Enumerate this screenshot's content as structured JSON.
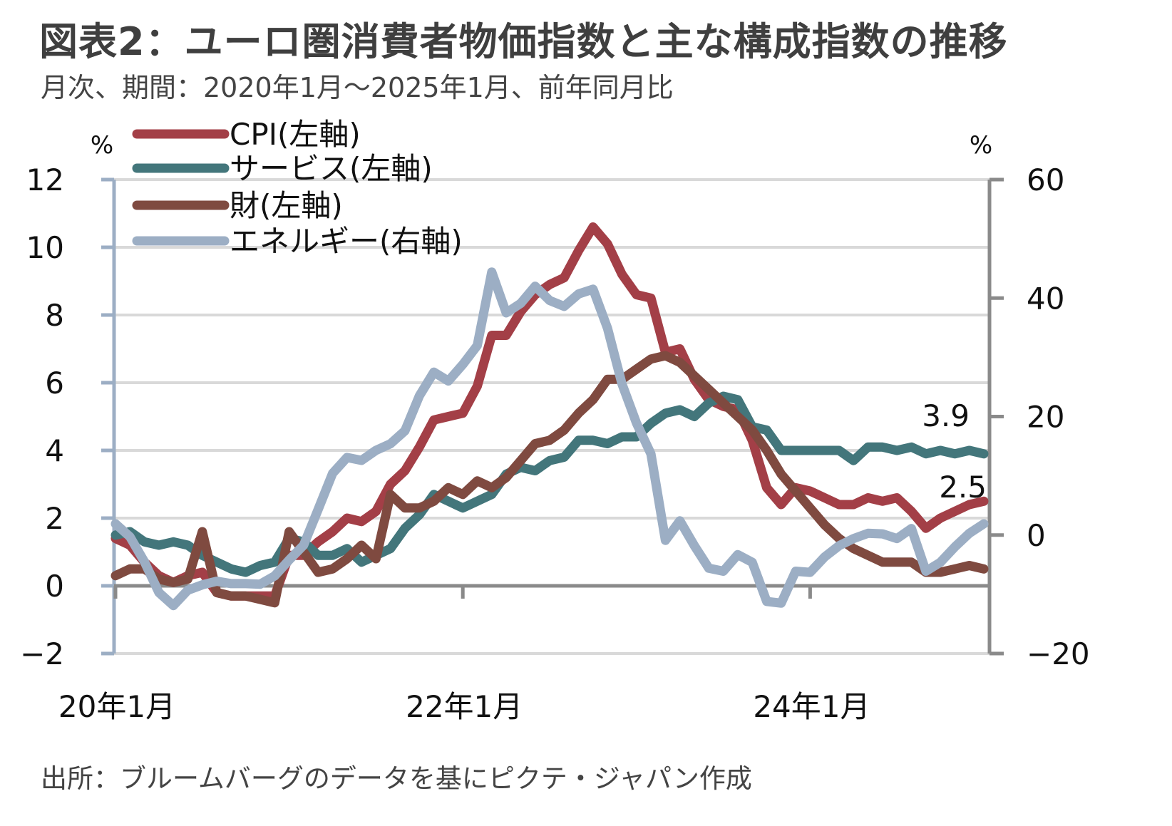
{
  "header": {
    "title": "図表2：ユーロ圏消費者物価指数と主な構成指数の推移",
    "subtitle": "月次、期間：2020年1月～2025年1月、前年同月比"
  },
  "footer": {
    "source": "出所：ブルームバーグのデータを基にピクテ・ジャパン作成"
  },
  "chart_data": {
    "type": "line",
    "title": "図表2：ユーロ圏消費者物価指数と主な構成指数の推移",
    "subtitle": "月次、期間：2020年1月～2025年1月、前年同月比",
    "x_start": "2020-01",
    "x_end": "2025-01",
    "x_count": 61,
    "x_tick_labels": [
      {
        "label": "20年1月",
        "index": 0
      },
      {
        "label": "22年1月",
        "index": 24
      },
      {
        "label": "24年1月",
        "index": 48
      }
    ],
    "y_left": {
      "unit": "%",
      "ylim": [
        -2,
        12
      ],
      "ticks": [
        12,
        10,
        8,
        6,
        4,
        2,
        0,
        -2
      ],
      "tick_labels": [
        "12",
        "10",
        "8",
        "6",
        "4",
        "2",
        "0",
        "−2"
      ]
    },
    "y_right": {
      "unit": "%",
      "ylim": [
        -20,
        60
      ],
      "ticks": [
        60,
        40,
        20,
        0,
        -20
      ],
      "tick_labels": [
        "60",
        "40",
        "20",
        "0",
        "−20"
      ]
    },
    "grid": true,
    "legend_position": "top-left",
    "series": [
      {
        "name": "CPI(左軸)",
        "axis": "left",
        "color": "#a33f47",
        "values": [
          1.4,
          1.2,
          0.7,
          0.3,
          0.1,
          0.3,
          0.4,
          -0.2,
          -0.3,
          -0.3,
          -0.3,
          -0.3,
          0.9,
          0.9,
          1.3,
          1.6,
          2.0,
          1.9,
          2.2,
          3.0,
          3.4,
          4.1,
          4.9,
          5.0,
          5.1,
          5.9,
          7.4,
          7.4,
          8.1,
          8.6,
          8.9,
          9.1,
          9.9,
          10.6,
          10.1,
          9.2,
          8.6,
          8.5,
          6.9,
          7.0,
          6.1,
          5.5,
          5.3,
          5.2,
          4.3,
          2.9,
          2.4,
          2.9,
          2.8,
          2.6,
          2.4,
          2.4,
          2.6,
          2.5,
          2.6,
          2.2,
          1.7,
          2.0,
          2.2,
          2.4,
          2.5
        ]
      },
      {
        "name": "サービス(左軸)",
        "axis": "left",
        "color": "#43767b",
        "values": [
          1.5,
          1.6,
          1.3,
          1.2,
          1.3,
          1.2,
          0.9,
          0.7,
          0.5,
          0.4,
          0.6,
          0.7,
          1.4,
          1.3,
          0.9,
          0.9,
          1.1,
          0.7,
          0.9,
          1.1,
          1.7,
          2.1,
          2.7,
          2.5,
          2.3,
          2.5,
          2.7,
          3.3,
          3.5,
          3.4,
          3.7,
          3.8,
          4.3,
          4.3,
          4.2,
          4.4,
          4.4,
          4.8,
          5.1,
          5.2,
          5.0,
          5.4,
          5.6,
          5.5,
          4.7,
          4.6,
          4.0,
          4.0,
          4.0,
          4.0,
          4.0,
          3.7,
          4.1,
          4.1,
          4.0,
          4.1,
          3.9,
          4.0,
          3.9,
          4.0,
          3.9
        ]
      },
      {
        "name": "財(左軸)",
        "axis": "left",
        "color": "#7f4a40",
        "values": [
          0.3,
          0.5,
          0.5,
          0.2,
          0.1,
          0.2,
          1.6,
          -0.2,
          -0.3,
          -0.3,
          -0.4,
          -0.5,
          1.6,
          1.0,
          0.4,
          0.5,
          0.8,
          1.2,
          0.8,
          2.7,
          2.3,
          2.3,
          2.5,
          2.9,
          2.7,
          3.1,
          2.9,
          3.2,
          3.7,
          4.2,
          4.3,
          4.6,
          5.1,
          5.5,
          6.1,
          6.1,
          6.4,
          6.7,
          6.8,
          6.6,
          6.2,
          5.8,
          5.4,
          5.0,
          4.6,
          4.0,
          3.3,
          2.8,
          2.3,
          1.8,
          1.4,
          1.1,
          0.9,
          0.7,
          0.7,
          0.7,
          0.4,
          0.4,
          0.5,
          0.6,
          0.5
        ]
      },
      {
        "name": "エネルギー(右軸)",
        "axis": "right",
        "color": "#9caec4",
        "values": [
          1.9,
          -0.3,
          -4.5,
          -9.7,
          -11.9,
          -9.3,
          -8.4,
          -7.8,
          -8.2,
          -8.2,
          -8.3,
          -6.9,
          -4.2,
          -1.7,
          4.3,
          10.4,
          13.1,
          12.6,
          14.3,
          15.4,
          17.6,
          23.5,
          27.5,
          26.0,
          28.8,
          32.0,
          44.4,
          37.5,
          39.1,
          42.0,
          39.6,
          38.6,
          40.7,
          41.5,
          34.9,
          25.5,
          18.9,
          13.7,
          -0.9,
          2.4,
          -1.8,
          -5.6,
          -6.1,
          -3.3,
          -4.6,
          -11.2,
          -11.5,
          -6.1,
          -6.3,
          -3.7,
          -1.8,
          -0.6,
          0.3,
          0.2,
          -0.6,
          1.1,
          -6.1,
          -4.6,
          -2.0,
          0.3,
          1.9
        ]
      }
    ],
    "annotations": [
      {
        "text": "3.9",
        "series": "サービス(左軸)",
        "at": "2025-01"
      },
      {
        "text": "2.5",
        "series": "CPI(左軸)",
        "at": "2025-01"
      }
    ],
    "axis_colors": {
      "left": "#9caec4",
      "right": "#8a8a8a",
      "zero_line": "#8a8a8a",
      "grid": "#d9d9d9"
    }
  }
}
